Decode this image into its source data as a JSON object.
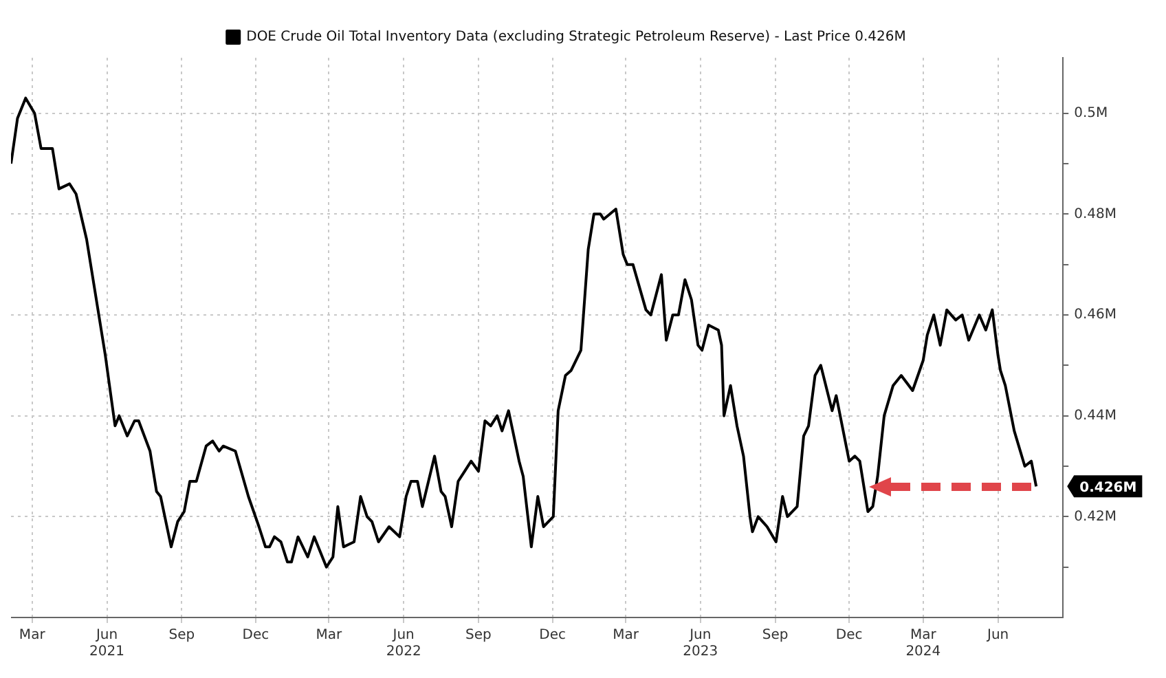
{
  "chart_data": {
    "type": "line",
    "legend": "top",
    "grid": true,
    "marker": "none",
    "line_style": "solid",
    "xlim": [
      "2021-02-03",
      "2024-08-20"
    ],
    "ylim": [
      0.4,
      0.511
    ],
    "xticks": [
      {
        "value": "2021-03-01",
        "label": "Mar"
      },
      {
        "value": "2021-06-01",
        "label": "Jun\n2021"
      },
      {
        "value": "2021-09-01",
        "label": "Sep"
      },
      {
        "value": "2021-12-01",
        "label": "Dec"
      },
      {
        "value": "2022-03-01",
        "label": "Mar"
      },
      {
        "value": "2022-06-01",
        "label": "Jun\n2022"
      },
      {
        "value": "2022-09-01",
        "label": "Sep"
      },
      {
        "value": "2022-12-01",
        "label": "Dec"
      },
      {
        "value": "2023-03-01",
        "label": "Mar"
      },
      {
        "value": "2023-06-01",
        "label": "Jun\n2023"
      },
      {
        "value": "2023-09-01",
        "label": "Sep"
      },
      {
        "value": "2023-12-01",
        "label": "Dec"
      },
      {
        "value": "2024-03-01",
        "label": "Mar\n2024"
      },
      {
        "value": "2024-06-01",
        "label": "Jun"
      }
    ],
    "yticks": [
      {
        "value": 0.41,
        "label": null
      },
      {
        "value": 0.42,
        "label": "0.42M"
      },
      {
        "value": 0.43,
        "label": null
      },
      {
        "value": 0.44,
        "label": "0.44M"
      },
      {
        "value": 0.45,
        "label": null
      },
      {
        "value": 0.46,
        "label": "0.46M"
      },
      {
        "value": 0.47,
        "label": null
      },
      {
        "value": 0.48,
        "label": "0.48M"
      },
      {
        "value": 0.49,
        "label": null
      },
      {
        "value": 0.5,
        "label": "0.5M"
      }
    ],
    "annotations": [
      "0.426M"
    ],
    "x": [
      "2021-02-03",
      "2021-02-11",
      "2021-02-21",
      "2021-03-04",
      "2021-03-12",
      "2021-03-26",
      "2021-04-03",
      "2021-04-16",
      "2021-04-24",
      "2021-05-07",
      "2021-05-30",
      "2021-06-11",
      "2021-06-16",
      "2021-06-26",
      "2021-07-05",
      "2021-07-10",
      "2021-07-24",
      "2021-08-01",
      "2021-08-06",
      "2021-08-19",
      "2021-08-27",
      "2021-09-04",
      "2021-09-11",
      "2021-09-19",
      "2021-10-01",
      "2021-10-09",
      "2021-10-17",
      "2021-10-22",
      "2021-11-06",
      "2021-11-22",
      "2021-12-05",
      "2021-12-13",
      "2021-12-18",
      "2021-12-24",
      "2022-01-01",
      "2022-01-09",
      "2022-01-14",
      "2022-01-22",
      "2022-02-03",
      "2022-02-11",
      "2022-02-26",
      "2022-03-06",
      "2022-03-12",
      "2022-03-19",
      "2022-04-01",
      "2022-04-09",
      "2022-04-17",
      "2022-04-23",
      "2022-05-01",
      "2022-05-14",
      "2022-05-27",
      "2022-06-04",
      "2022-06-10",
      "2022-06-18",
      "2022-06-24",
      "2022-07-09",
      "2022-07-17",
      "2022-07-22",
      "2022-07-30",
      "2022-08-07",
      "2022-08-15",
      "2022-08-23",
      "2022-09-01",
      "2022-09-09",
      "2022-09-16",
      "2022-09-24",
      "2022-09-30",
      "2022-10-08",
      "2022-10-21",
      "2022-10-26",
      "2022-11-05",
      "2022-11-13",
      "2022-11-20",
      "2022-12-02",
      "2022-12-08",
      "2022-12-17",
      "2022-12-24",
      "2023-01-05",
      "2023-01-14",
      "2023-01-21",
      "2023-01-29",
      "2023-02-02",
      "2023-02-17",
      "2023-02-26",
      "2023-03-03",
      "2023-03-10",
      "2023-03-26",
      "2023-04-01",
      "2023-04-14",
      "2023-04-20",
      "2023-04-28",
      "2023-05-05",
      "2023-05-13",
      "2023-05-21",
      "2023-05-29",
      "2023-06-03",
      "2023-06-11",
      "2023-06-23",
      "2023-06-27",
      "2023-06-30",
      "2023-07-08",
      "2023-07-16",
      "2023-07-24",
      "2023-08-01",
      "2023-08-04",
      "2023-08-11",
      "2023-08-22",
      "2023-09-02",
      "2023-09-10",
      "2023-09-16",
      "2023-09-28",
      "2023-10-06",
      "2023-10-12",
      "2023-10-20",
      "2023-10-27",
      "2023-11-10",
      "2023-11-15",
      "2023-12-01",
      "2023-12-08",
      "2023-12-14",
      "2023-12-24",
      "2023-12-30",
      "2024-01-05",
      "2024-01-13",
      "2024-01-24",
      "2024-02-03",
      "2024-02-17",
      "2024-03-01",
      "2024-03-06",
      "2024-03-14",
      "2024-03-22",
      "2024-03-30",
      "2024-04-10",
      "2024-04-18",
      "2024-04-26",
      "2024-05-09",
      "2024-05-17",
      "2024-05-25",
      "2024-06-01",
      "2024-06-04",
      "2024-06-10",
      "2024-06-21",
      "2024-07-04",
      "2024-07-12",
      "2024-07-18"
    ],
    "series": [
      {
        "name": "DOE Crude Oil Total Inventory Data (excluding Strategic Petroleum Reserve) - Last Price 0.426M",
        "color": "#000000",
        "values": [
          0.49,
          0.499,
          0.503,
          0.5,
          0.493,
          0.493,
          0.485,
          0.486,
          0.484,
          0.475,
          0.452,
          0.438,
          0.44,
          0.436,
          0.439,
          0.439,
          0.433,
          0.425,
          0.424,
          0.414,
          0.419,
          0.421,
          0.427,
          0.427,
          0.434,
          0.435,
          0.433,
          0.434,
          0.433,
          0.424,
          0.418,
          0.414,
          0.414,
          0.416,
          0.415,
          0.411,
          0.411,
          0.416,
          0.412,
          0.416,
          0.41,
          0.412,
          0.422,
          0.414,
          0.415,
          0.424,
          0.42,
          0.419,
          0.415,
          0.418,
          0.416,
          0.424,
          0.427,
          0.427,
          0.422,
          0.432,
          0.425,
          0.424,
          0.418,
          0.427,
          0.429,
          0.431,
          0.429,
          0.439,
          0.438,
          0.44,
          0.437,
          0.441,
          0.431,
          0.428,
          0.414,
          0.424,
          0.418,
          0.42,
          0.441,
          0.448,
          0.449,
          0.453,
          0.473,
          0.48,
          0.48,
          0.479,
          0.481,
          0.472,
          0.47,
          0.47,
          0.461,
          0.46,
          0.468,
          0.455,
          0.46,
          0.46,
          0.467,
          0.463,
          0.454,
          0.453,
          0.458,
          0.457,
          0.454,
          0.44,
          0.446,
          0.438,
          0.432,
          0.42,
          0.417,
          0.42,
          0.418,
          0.415,
          0.424,
          0.42,
          0.422,
          0.436,
          0.438,
          0.448,
          0.45,
          0.441,
          0.444,
          0.431,
          0.432,
          0.431,
          0.421,
          0.422,
          0.428,
          0.44,
          0.446,
          0.448,
          0.445,
          0.451,
          0.456,
          0.46,
          0.454,
          0.461,
          0.459,
          0.46,
          0.455,
          0.46,
          0.457,
          0.461,
          0.452,
          0.449,
          0.446,
          0.437,
          0.43,
          0.431,
          0.426
        ]
      }
    ]
  }
}
